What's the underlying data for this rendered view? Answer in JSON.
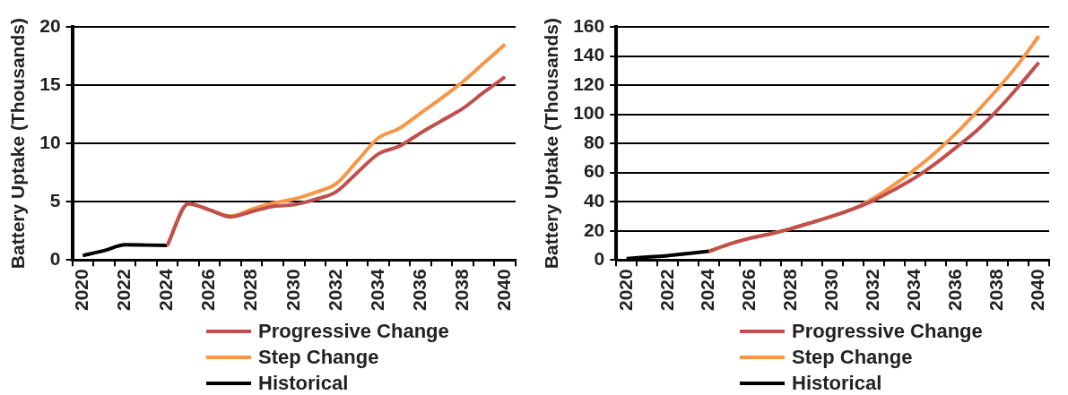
{
  "chart_data": [
    {
      "type": "line",
      "ylabel": "Battery Uptake (Thousands)",
      "categories": [
        "2020",
        null,
        "2022",
        null,
        "2024",
        null,
        "2026",
        null,
        "2028",
        null,
        "2030",
        null,
        "2032",
        null,
        "2034",
        null,
        "2036",
        null,
        "2038",
        null,
        "2040"
      ],
      "ylim": [
        0,
        20
      ],
      "yticks": [
        0,
        5,
        10,
        15,
        20
      ],
      "grid": "y",
      "legend": "bottom",
      "line_style": "solid",
      "marker": "none",
      "series": [
        {
          "name": "Progressive Change",
          "color": "#c0504d",
          "values": [
            null,
            null,
            null,
            null,
            1.25,
            4.83,
            4.3,
            3.7,
            4.15,
            4.6,
            4.74,
            5.2,
            5.85,
            7.5,
            9.1,
            9.77,
            10.9,
            11.95,
            13.0,
            14.4,
            15.7
          ]
        },
        {
          "name": "Step Change",
          "color": "#f79646",
          "values": [
            null,
            null,
            null,
            null,
            1.25,
            4.83,
            4.3,
            3.78,
            4.36,
            4.88,
            5.23,
            5.8,
            6.54,
            8.5,
            10.47,
            11.3,
            12.6,
            13.9,
            15.3,
            16.9,
            18.5
          ]
        },
        {
          "name": "Historical",
          "color": "#000000",
          "values": [
            0.38,
            0.8,
            1.3,
            1.28,
            1.25,
            null,
            null,
            null,
            null,
            null,
            null,
            null,
            null,
            null,
            null,
            null,
            null,
            null,
            null,
            null,
            null
          ]
        }
      ]
    },
    {
      "type": "line",
      "ylabel": "Battery Uptake (Thousands)",
      "categories": [
        "2020",
        null,
        "2022",
        null,
        "2024",
        null,
        "2026",
        null,
        "2028",
        null,
        "2030",
        null,
        "2032",
        null,
        "2034",
        null,
        "2036",
        null,
        "2038",
        null,
        "2040"
      ],
      "ylim": [
        0,
        160
      ],
      "yticks": [
        0,
        20,
        40,
        60,
        80,
        100,
        120,
        140,
        160
      ],
      "grid": "y",
      "legend": "bottom",
      "line_style": "solid",
      "marker": "none",
      "series": [
        {
          "name": "Progressive Change",
          "color": "#c0504d",
          "values": [
            null,
            null,
            null,
            null,
            6,
            11,
            15,
            18,
            21.6,
            25.8,
            30.2,
            35.1,
            41,
            48.4,
            56.5,
            66.3,
            77.4,
            89,
            103,
            118.8,
            135.6
          ]
        },
        {
          "name": "Step Change",
          "color": "#f79646",
          "values": [
            null,
            null,
            null,
            null,
            6,
            11,
            15,
            18,
            21.6,
            25.8,
            30.2,
            35.1,
            42.6,
            51.9,
            62.3,
            74,
            87.2,
            101.9,
            117.4,
            134.4,
            153.7
          ]
        },
        {
          "name": "Historical",
          "color": "#000000",
          "values": [
            1,
            2,
            3,
            4.5,
            6,
            null,
            null,
            null,
            null,
            null,
            null,
            null,
            null,
            null,
            null,
            null,
            null,
            null,
            null,
            null,
            null
          ]
        }
      ]
    }
  ]
}
